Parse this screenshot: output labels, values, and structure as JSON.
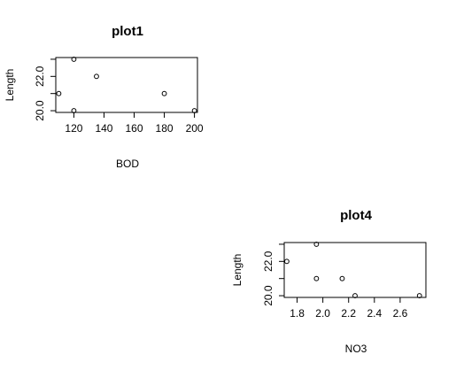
{
  "page": {
    "background": "#ffffff"
  },
  "chart_data": [
    {
      "type": "scatter",
      "title": "plot1",
      "xlabel": "BOD",
      "ylabel": "Length",
      "xlim": [
        108,
        202
      ],
      "ylim": [
        19.9,
        23.1
      ],
      "xticks": [
        {
          "value": 120,
          "label": "120"
        },
        {
          "value": 140,
          "label": "140"
        },
        {
          "value": 160,
          "label": "160"
        },
        {
          "value": 180,
          "label": "180"
        },
        {
          "value": 200,
          "label": "200"
        }
      ],
      "yticks": [
        {
          "value": 20,
          "label": "20.0"
        },
        {
          "value": 21,
          "label": ""
        },
        {
          "value": 22,
          "label": "22.0"
        },
        {
          "value": 23,
          "label": ""
        }
      ],
      "points": [
        {
          "x": 110,
          "y": 21
        },
        {
          "x": 120,
          "y": 23
        },
        {
          "x": 120,
          "y": 20
        },
        {
          "x": 135,
          "y": 22
        },
        {
          "x": 180,
          "y": 21
        },
        {
          "x": 200,
          "y": 20
        }
      ],
      "grid": false,
      "marker": "open-circle",
      "color": "#000000"
    },
    {
      "type": "scatter",
      "title": "plot4",
      "xlabel": "NO3",
      "ylabel": "Length",
      "xlim": [
        1.7,
        2.8
      ],
      "ylim": [
        19.9,
        23.1
      ],
      "xticks": [
        {
          "value": 1.8,
          "label": "1.8"
        },
        {
          "value": 2.0,
          "label": "2.0"
        },
        {
          "value": 2.2,
          "label": "2.2"
        },
        {
          "value": 2.4,
          "label": "2.4"
        },
        {
          "value": 2.6,
          "label": "2.6"
        }
      ],
      "yticks": [
        {
          "value": 20,
          "label": "20.0"
        },
        {
          "value": 21,
          "label": ""
        },
        {
          "value": 22,
          "label": "22.0"
        },
        {
          "value": 23,
          "label": ""
        }
      ],
      "points": [
        {
          "x": 1.72,
          "y": 22
        },
        {
          "x": 1.95,
          "y": 23
        },
        {
          "x": 1.95,
          "y": 21
        },
        {
          "x": 2.15,
          "y": 21
        },
        {
          "x": 2.25,
          "y": 20
        },
        {
          "x": 2.75,
          "y": 20
        }
      ],
      "grid": false,
      "marker": "open-circle",
      "color": "#000000"
    }
  ]
}
